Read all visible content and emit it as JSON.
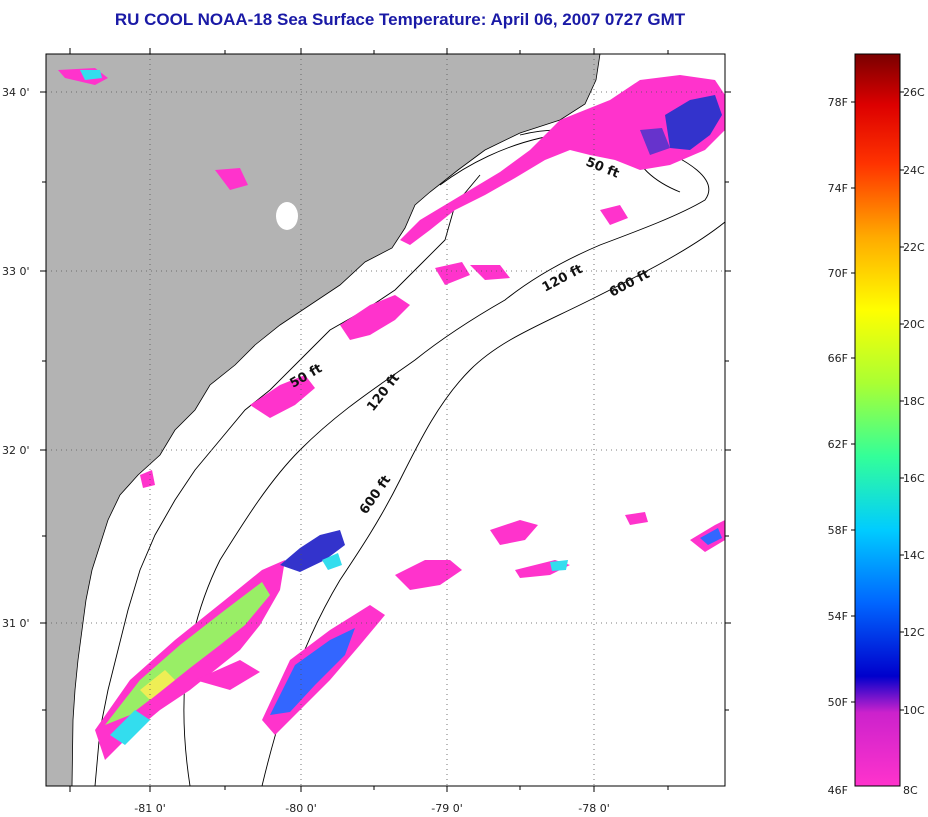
{
  "title": "RU COOL  NOAA-18  Sea Surface Temperature:  April 06, 2007 0727 GMT",
  "latitude_labels": [
    "34 0'",
    "33 0'",
    "32 0'",
    "31 0'"
  ],
  "longitude_labels": [
    "-81 0'",
    "-80 0'",
    "-79 0'",
    "-78 0'"
  ],
  "contour_labels": [
    "50 ft",
    "120 ft",
    "600 ft",
    "50 ft",
    "120 ft",
    "600 ft"
  ],
  "colorbar": {
    "fahrenheit_labels": [
      "78F",
      "74F",
      "70F",
      "66F",
      "62F",
      "58F",
      "54F",
      "50F",
      "46F"
    ],
    "celsius_labels": [
      "26C",
      "24C",
      "22C",
      "20C",
      "18C",
      "16C",
      "14C",
      "12C",
      "10C",
      "8C"
    ],
    "colors": [
      "#7a0000",
      "#d40000",
      "#ff3300",
      "#ff8800",
      "#ffcc00",
      "#ffff00",
      "#aaff33",
      "#33ff66",
      "#00ffcc",
      "#00ccff",
      "#0066ff",
      "#0000cc",
      "#8800cc",
      "#ff33cc"
    ]
  },
  "colors": {
    "land": "#b3b3b3",
    "ocean": "#ffffff",
    "title": "#1a1aa6",
    "sst_pink": "#ff33cc",
    "sst_magenta": "#cc33cc",
    "sst_blue": "#3333ff",
    "sst_cyan": "#33ddee",
    "sst_green": "#99ee66",
    "sst_yellow": "#eeee55"
  }
}
